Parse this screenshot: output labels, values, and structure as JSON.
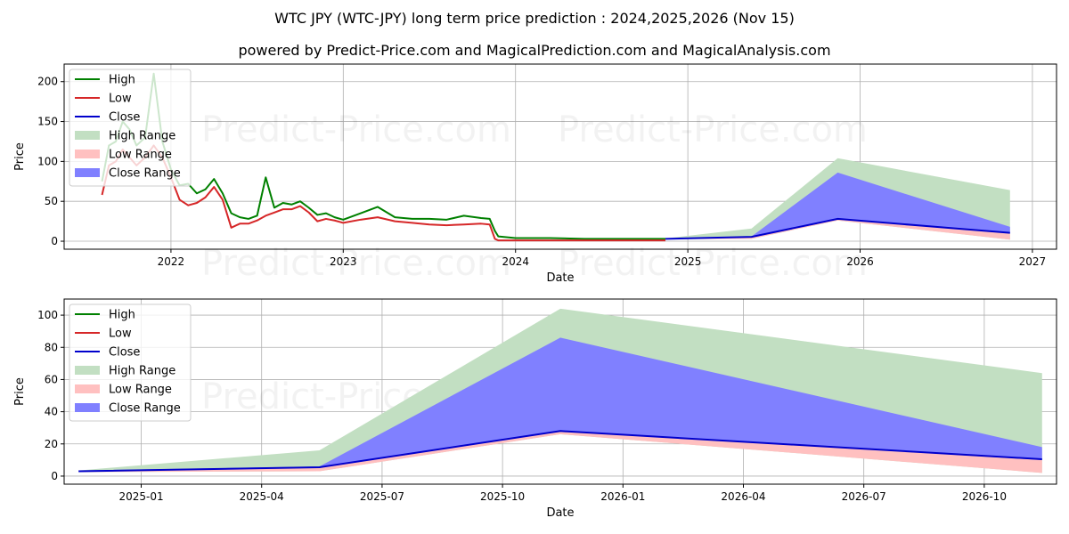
{
  "title": "WTC JPY (WTC-JPY) long term price prediction : 2024,2025,2026 (Nov 15)",
  "subtitle": "powered by Predict-Price.com and MagicalPrediction.com and MagicalAnalysis.com",
  "watermark": "Predict-Price.com",
  "colors": {
    "high": "#008000",
    "low": "#d62728",
    "close": "#0000cc",
    "high_range": "#c2dfc2",
    "low_range": "#ffc0c0",
    "close_range": "#8080ff"
  },
  "legend": [
    "High",
    "Low",
    "Close",
    "High Range",
    "Low Range",
    "Close Range"
  ],
  "chart_data": [
    {
      "type": "line",
      "id": "top",
      "xlabel": "Date",
      "ylabel": "Price",
      "xlim": [
        2021.38,
        2027.14
      ],
      "ylim": [
        -10,
        222
      ],
      "xticks": [
        2022,
        2023,
        2024,
        2025,
        2026,
        2027
      ],
      "xtick_labels": [
        "2022",
        "2023",
        "2024",
        "2025",
        "2026",
        "2027"
      ],
      "yticks": [
        0,
        50,
        100,
        150,
        200
      ],
      "ytick_labels": [
        "0",
        "50",
        "100",
        "150",
        "200"
      ],
      "history": {
        "x": [
          2021.6,
          2021.64,
          2021.68,
          2021.72,
          2021.76,
          2021.8,
          2021.85,
          2021.9,
          2021.95,
          2022.0,
          2022.05,
          2022.1,
          2022.15,
          2022.2,
          2022.25,
          2022.3,
          2022.35,
          2022.4,
          2022.45,
          2022.5,
          2022.55,
          2022.6,
          2022.65,
          2022.7,
          2022.75,
          2022.8,
          2022.85,
          2022.9,
          2022.95,
          2023.0,
          2023.1,
          2023.2,
          2023.3,
          2023.4,
          2023.5,
          2023.6,
          2023.7,
          2023.8,
          2023.85,
          2023.88,
          2023.9,
          2024.0,
          2024.2,
          2024.4,
          2024.6,
          2024.8,
          2024.87
        ],
        "high": [
          75,
          120,
          125,
          150,
          140,
          120,
          130,
          210,
          125,
          90,
          70,
          72,
          60,
          65,
          78,
          60,
          35,
          30,
          28,
          32,
          80,
          42,
          48,
          46,
          50,
          42,
          33,
          35,
          30,
          27,
          35,
          43,
          30,
          28,
          28,
          27,
          32,
          29,
          28,
          13,
          6,
          4,
          4,
          3,
          3,
          3,
          3
        ],
        "low": [
          58,
          95,
          100,
          115,
          105,
          95,
          105,
          120,
          105,
          80,
          52,
          45,
          48,
          55,
          68,
          52,
          17,
          22,
          22,
          26,
          32,
          36,
          40,
          40,
          44,
          36,
          25,
          28,
          26,
          23,
          27,
          30,
          25,
          23,
          21,
          20,
          21,
          22,
          21,
          3,
          1,
          1,
          1,
          1,
          1,
          1,
          1
        ]
      },
      "forecast": {
        "x": [
          2024.87,
          2025.37,
          2025.87,
          2026.87
        ],
        "high": [
          3.5,
          16,
          104,
          64
        ],
        "low": [
          2.5,
          3,
          26,
          2
        ],
        "close_high": [
          3.5,
          6,
          86,
          18
        ],
        "close_low": [
          3,
          5.5,
          28,
          10
        ],
        "close": [
          3,
          5.5,
          28,
          10.5
        ]
      }
    },
    {
      "type": "line",
      "id": "bottom",
      "xlabel": "Date",
      "ylabel": "Price",
      "xlim": [
        2024.84,
        2026.9
      ],
      "ylim": [
        -5,
        110
      ],
      "xticks": [
        2025.0,
        2025.25,
        2025.5,
        2025.75,
        2026.0,
        2026.25,
        2026.5,
        2026.75
      ],
      "xtick_labels": [
        "2025-01",
        "2025-04",
        "2025-07",
        "2025-10",
        "2026-01",
        "2026-04",
        "2026-07",
        "2026-10"
      ],
      "yticks": [
        0,
        20,
        40,
        60,
        80,
        100
      ],
      "ytick_labels": [
        "0",
        "20",
        "40",
        "60",
        "80",
        "100"
      ],
      "forecast": {
        "x": [
          2024.87,
          2025.37,
          2025.87,
          2026.87
        ],
        "high": [
          3.5,
          16,
          104,
          64
        ],
        "low": [
          2.5,
          3,
          26,
          2
        ],
        "close_high": [
          3.5,
          6,
          86,
          18
        ],
        "close_low": [
          3,
          5.5,
          28,
          10
        ],
        "close": [
          3,
          5.5,
          28,
          10.5
        ]
      }
    }
  ]
}
